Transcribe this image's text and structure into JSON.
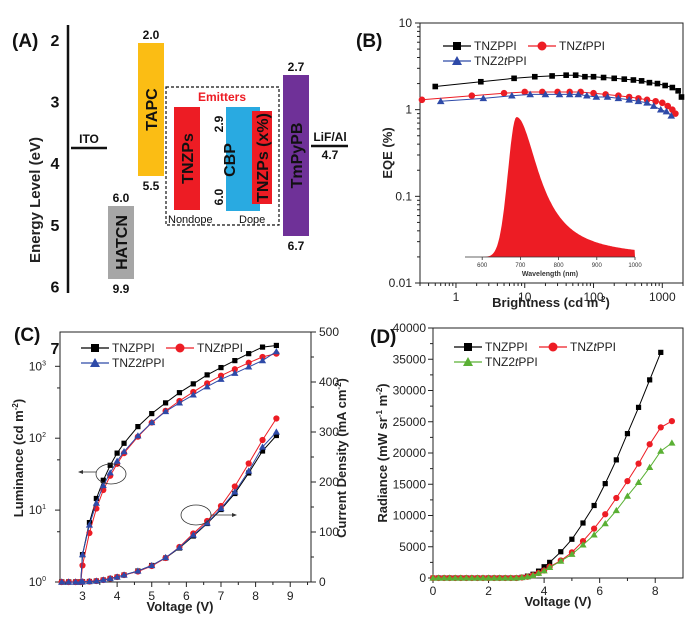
{
  "chart_data": [
    {
      "panel": "(A)",
      "type": "diagram",
      "title": "",
      "ylabel": "Energy Level (eV)",
      "yticks": [
        "2",
        "3",
        "4",
        "5",
        "6",
        "7"
      ],
      "ylim": [
        1.5,
        8.3
      ],
      "levels": [
        {
          "name": "ITO",
          "kind": "line",
          "value": 4.7,
          "label": "ITO"
        },
        {
          "name": "HATCN",
          "kind": "bar",
          "top": 6.0,
          "bottom": 9.9,
          "top_label": "6.0",
          "bottom_label": "9.9",
          "color": "#a6a6a6"
        },
        {
          "name": "TAPC",
          "kind": "bar",
          "top": 2.0,
          "bottom": 5.5,
          "top_label": "2.0",
          "bottom_label": "5.5",
          "color": "#fbbd14"
        },
        {
          "name": "TNZPs",
          "kind": "bar",
          "top": 3.6,
          "bottom": 6.1,
          "color": "#ed1c24",
          "caption": "Nondope"
        },
        {
          "name": "CBP",
          "kind": "bar",
          "top": 2.9,
          "bottom": 6.0,
          "top_label": "2.9",
          "bottom_label": "6.0",
          "color": "#29aae1",
          "caption": "Dope"
        },
        {
          "name": "TNZPs (x%)",
          "kind": "bar",
          "top": 3.0,
          "bottom": 5.9,
          "color": "#ed1c24"
        },
        {
          "name": "TmPyPB",
          "kind": "bar",
          "top": 2.7,
          "bottom": 6.7,
          "top_label": "2.7",
          "bottom_label": "6.7",
          "color": "#6f3198"
        },
        {
          "name": "LiF/Al",
          "kind": "line",
          "value": 4.7,
          "label": "LiF/Al",
          "value_label": "4.7"
        }
      ],
      "box_title": "Emitters",
      "box_title_color": "#ed1c24"
    },
    {
      "panel": "(B)",
      "type": "line",
      "xscale": "log",
      "yscale": "log",
      "xlabel": "Brightness (cd m-2)",
      "ylabel": "EQE (%)",
      "xlim": [
        0.3,
        2000
      ],
      "ylim": [
        0.01,
        10
      ],
      "xticks": [
        "1",
        "10",
        "100",
        "1000"
      ],
      "yticks": [
        "0.01",
        "0.1",
        "1",
        "10"
      ],
      "legend": "top-left",
      "series": [
        {
          "name": "TNZPPI",
          "color": "#000000",
          "marker": "square",
          "x": [
            0.5,
            2.3,
            7,
            14,
            25,
            40,
            55,
            75,
            100,
            140,
            200,
            280,
            380,
            500,
            650,
            850,
            1100,
            1400,
            1700,
            1900
          ],
          "y": [
            1.85,
            2.1,
            2.3,
            2.4,
            2.45,
            2.5,
            2.5,
            2.4,
            2.4,
            2.35,
            2.3,
            2.25,
            2.2,
            2.15,
            2.05,
            2.0,
            1.9,
            1.8,
            1.65,
            1.4
          ]
        },
        {
          "name": "TNZtPPI",
          "color": "#ed1c24",
          "marker": "circle",
          "x": [
            0.32,
            1.7,
            5,
            10,
            18,
            30,
            45,
            65,
            100,
            150,
            230,
            330,
            450,
            600,
            800,
            1000,
            1200,
            1400,
            1550
          ],
          "y": [
            1.3,
            1.45,
            1.55,
            1.6,
            1.6,
            1.6,
            1.6,
            1.6,
            1.55,
            1.5,
            1.45,
            1.4,
            1.35,
            1.3,
            1.25,
            1.2,
            1.1,
            1.0,
            0.9
          ]
        },
        {
          "name": "TNZ2tPPI",
          "color": "#2e4aa8",
          "marker": "triangle",
          "x": [
            0.6,
            2.5,
            6.5,
            12,
            20,
            32,
            45,
            60,
            80,
            110,
            160,
            230,
            330,
            450,
            600,
            750,
            950,
            1150,
            1350
          ],
          "y": [
            1.25,
            1.35,
            1.45,
            1.5,
            1.5,
            1.5,
            1.5,
            1.5,
            1.45,
            1.4,
            1.4,
            1.35,
            1.3,
            1.25,
            1.2,
            1.1,
            1.0,
            0.95,
            0.85
          ]
        }
      ],
      "inset": {
        "type": "area",
        "color": "#ed1c24",
        "xlabel": "Wavelength (nm)",
        "xticks": [
          "600",
          "700",
          "800",
          "900",
          "1000"
        ],
        "xlim": [
          555,
          1000
        ],
        "peak_x": 690,
        "peak_relative_height": 1.0
      }
    },
    {
      "panel": "(C)",
      "type": "line",
      "xlabel": "Voltage (V)",
      "ylabel": "Luminance (cd m-2)",
      "y2label": "Current Density (mA cm-2)",
      "xlim": [
        2.35,
        9.6
      ],
      "ylim_log": [
        1,
        3000
      ],
      "y2lim": [
        0,
        500
      ],
      "xticks": [
        "3",
        "4",
        "5",
        "6",
        "7",
        "8",
        "9"
      ],
      "yticks": [
        "10^0",
        "10^1",
        "10^2",
        "10^3"
      ],
      "y2ticks": [
        "0",
        "100",
        "200",
        "300",
        "400",
        "500"
      ],
      "legend": "top-left",
      "annotations": [
        "left-arrow to luminance axis",
        "right-arrow to current density axis"
      ],
      "x": [
        3.0,
        3.2,
        3.4,
        3.6,
        3.8,
        4.0,
        4.2,
        4.6,
        5.0,
        5.4,
        5.8,
        6.2,
        6.6,
        7.0,
        7.4,
        7.8,
        8.2,
        8.6
      ],
      "series": [
        {
          "name": "TNZPPI",
          "color": "#000000",
          "marker": "square",
          "axis": "luminance",
          "y": [
            2.4,
            6.7,
            14.5,
            26,
            42,
            62,
            85,
            145,
            220,
            310,
            430,
            570,
            760,
            960,
            1200,
            1500,
            1850,
            1950
          ]
        },
        {
          "name": "TNZtPPI",
          "color": "#ed1c24",
          "marker": "circle",
          "axis": "luminance",
          "y": [
            1.7,
            4.8,
            10.5,
            19,
            30,
            44,
            62,
            105,
            165,
            240,
            330,
            440,
            580,
            740,
            910,
            1120,
            1350,
            1500
          ]
        },
        {
          "name": "TNZ2tPPI",
          "color": "#2e4aa8",
          "marker": "triangle",
          "axis": "luminance",
          "y": [
            2.4,
            6.2,
            12.5,
            22,
            33,
            48,
            65,
            108,
            165,
            235,
            310,
            400,
            520,
            660,
            800,
            980,
            1200,
            1600
          ]
        },
        {
          "name": "TNZPPI",
          "color": "#000000",
          "marker": "square",
          "axis": "current_density",
          "y": [
            0.5,
            1,
            2,
            4,
            7,
            10,
            14,
            22,
            33,
            48,
            68,
            92,
            117,
            145,
            177,
            218,
            262,
            293
          ]
        },
        {
          "name": "TNZtPPI",
          "color": "#ed1c24",
          "marker": "circle",
          "axis": "current_density",
          "y": [
            0.5,
            1,
            2,
            4,
            7,
            10,
            14,
            21,
            32,
            48,
            70,
            97,
            122,
            152,
            191,
            237,
            284,
            327
          ]
        },
        {
          "name": "TNZ2tPPI",
          "color": "#2e4aa8",
          "marker": "triangle",
          "axis": "current_density",
          "y": [
            0.5,
            1,
            2,
            4,
            7,
            10,
            14,
            22,
            33,
            49,
            69,
            94,
            118,
            147,
            180,
            222,
            270,
            300
          ]
        }
      ]
    },
    {
      "panel": "(D)",
      "type": "line",
      "xlabel": "Voltage (V)",
      "ylabel": "Radiance (mW sr-1 m-2)",
      "xlim": [
        0,
        9.0
      ],
      "ylim": [
        0,
        40000
      ],
      "xticks": [
        "0",
        "2",
        "4",
        "6",
        "8"
      ],
      "yticks": [
        "0",
        "5000",
        "10000",
        "15000",
        "20000",
        "25000",
        "30000",
        "35000",
        "40000"
      ],
      "legend": "top-left",
      "x": [
        0,
        0.2,
        0.4,
        0.6,
        0.8,
        1.0,
        1.2,
        1.4,
        1.6,
        1.8,
        2.0,
        2.2,
        2.4,
        2.6,
        2.8,
        3.0,
        3.2,
        3.4,
        3.6,
        3.8,
        4.0,
        4.2,
        4.6,
        5.0,
        5.4,
        5.8,
        6.2,
        6.6,
        7.0,
        7.4,
        7.8,
        8.2,
        8.6
      ],
      "series": [
        {
          "name": "TNZPPI",
          "color": "#000000",
          "marker": "square",
          "y": [
            0,
            0,
            0,
            0,
            0,
            0,
            0,
            0,
            0,
            0,
            0,
            0,
            0,
            0,
            0,
            0,
            100,
            300,
            600,
            1100,
            1800,
            2500,
            4200,
            6200,
            8800,
            11600,
            15100,
            18900,
            23100,
            27300,
            31700,
            36100,
            null
          ]
        },
        {
          "name": "TNZtPPI",
          "color": "#ed1c24",
          "marker": "circle",
          "y": [
            0,
            0,
            0,
            0,
            0,
            0,
            0,
            0,
            0,
            0,
            0,
            0,
            0,
            0,
            0,
            0,
            80,
            200,
            450,
            800,
            1200,
            1800,
            2800,
            4100,
            5900,
            7900,
            10200,
            12800,
            15500,
            18300,
            21400,
            24100,
            25100
          ]
        },
        {
          "name": "TNZ2tPPI",
          "color": "#5ab034",
          "marker": "triangle",
          "y": [
            0,
            0,
            0,
            0,
            0,
            0,
            0,
            0,
            0,
            0,
            0,
            0,
            0,
            0,
            0,
            0,
            80,
            200,
            400,
            750,
            1150,
            1700,
            2700,
            3800,
            5300,
            6900,
            8700,
            10800,
            13100,
            15300,
            17700,
            20300,
            21600
          ]
        }
      ]
    }
  ],
  "panel_labels": {
    "a": "(A)",
    "b": "(B)",
    "c": "(C)",
    "d": "(D)"
  },
  "text": {
    "a_ylabel": "Energy Level (eV)",
    "a_emitters": "Emitters",
    "a_nondope": "Nondope",
    "a_dope": "Dope",
    "a_ito": "ITO",
    "a_lifal": "LiF/Al",
    "a_lifal_val": "4.7",
    "b_xlabel": "Brightness (cd m",
    "b_xsup": "-2",
    "b_ylabel": "EQE (%)",
    "b_inset_xlabel": "Wavelength (nm)",
    "c_xlabel": "Voltage (V)",
    "c_ylabel": "Luminance (cd m",
    "c_y2label": "Current Density (mA cm",
    "sup_m2": "-2",
    "d_xlabel": "Voltage (V)",
    "d_ylabel": "Radiance (mW sr",
    "d_ysup1": "-1",
    "d_ymid": " m",
    "d_ysup2": "-2",
    "close_paren": ")",
    "legend_tnzppi": "TNZPPI",
    "legend_tnztppi_pre": "TNZ",
    "legend_tnztppi_it": "t",
    "legend_tnztppi_post": "PPI",
    "legend_tnz2tppi_pre": "TNZ2",
    "legend_tnz2tppi_it": "t",
    "legend_tnz2tppi_post": "PPI"
  }
}
